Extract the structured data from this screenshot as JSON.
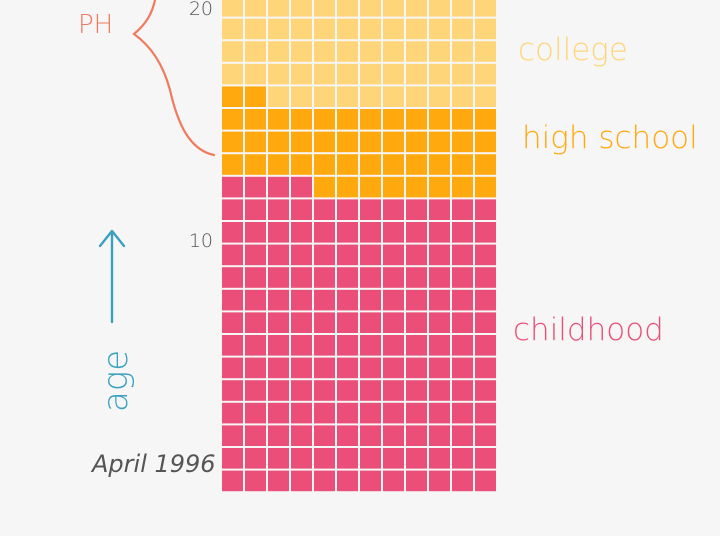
{
  "colors": {
    "background": "#f6f6f6",
    "college": "#ffd57a",
    "high_school": "#ffa90f",
    "childhood": "#eb4e78",
    "grid_line": "#ffffff",
    "ph_label": "#f07a5e",
    "age_label": "#3aa0c0",
    "axis_text": "#555555"
  },
  "grid": {
    "columns": 12,
    "rows": [
      {
        "phase": "college",
        "count": 4
      },
      {
        "phase": "mixed",
        "left_phase": "high_school",
        "left_count": 2,
        "right_phase": "college",
        "count": 1
      },
      {
        "phase": "high_school",
        "count": 3
      },
      {
        "phase": "mixed",
        "left_phase": "childhood",
        "left_count": 4,
        "right_phase": "high_school",
        "count": 1
      },
      {
        "phase": "childhood",
        "count": 13
      }
    ]
  },
  "labels": {
    "ph": "PH",
    "college": "college",
    "high_school": "high school",
    "childhood": "childhood",
    "age": "age",
    "start_date": "April 1996",
    "tick_20": "20",
    "tick_10": "10"
  }
}
